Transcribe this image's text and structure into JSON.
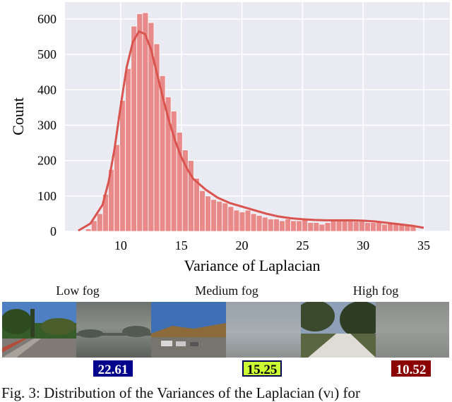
{
  "chart_data": {
    "type": "bar",
    "xlabel": "Variance of Laplacian",
    "ylabel": "Count",
    "xlim": [
      5.4,
      36.3
    ],
    "ylim": [
      0,
      650
    ],
    "xticks": [
      10,
      15,
      20,
      25,
      30,
      35
    ],
    "yticks": [
      0,
      100,
      200,
      300,
      400,
      500,
      600
    ],
    "grid": true,
    "bin_width": 0.47,
    "bin_starts": [
      7.1,
      7.57,
      8.04,
      8.51,
      8.98,
      9.45,
      9.92,
      10.39,
      10.86,
      11.33,
      11.8,
      12.27,
      12.74,
      13.21,
      13.68,
      14.15,
      14.62,
      15.09,
      15.56,
      16.03,
      16.5,
      16.97,
      17.44,
      17.91,
      18.38,
      18.85,
      19.32,
      19.79,
      20.26,
      20.73,
      21.2,
      21.67,
      22.14,
      22.61,
      23.08,
      23.55,
      24.02,
      24.49,
      24.96,
      25.43,
      25.9,
      26.37,
      26.84,
      27.31,
      27.78,
      28.25,
      28.72,
      29.19,
      29.66,
      30.13,
      30.6,
      31.07,
      31.54,
      32.01,
      32.48,
      32.95,
      33.42,
      33.89
    ],
    "counts": [
      7,
      30,
      50,
      105,
      175,
      245,
      370,
      460,
      580,
      615,
      618,
      590,
      530,
      440,
      380,
      340,
      280,
      230,
      200,
      150,
      115,
      100,
      90,
      85,
      80,
      70,
      60,
      55,
      60,
      50,
      45,
      40,
      35,
      35,
      30,
      35,
      30,
      30,
      35,
      25,
      25,
      20,
      25,
      30,
      30,
      30,
      30,
      28,
      28,
      25,
      25,
      30,
      20,
      25,
      20,
      20,
      20,
      15
    ],
    "kde": {
      "x": [
        6.5,
        7.5,
        8.5,
        9.0,
        9.5,
        10.0,
        10.5,
        11.0,
        11.5,
        12.0,
        12.5,
        13.0,
        13.5,
        14.0,
        14.5,
        15.0,
        15.5,
        16.0,
        17.0,
        18.0,
        19.0,
        20.0,
        21.0,
        22.0,
        23.0,
        24.0,
        25.0,
        26.0,
        27.0,
        28.0,
        29.0,
        30.0,
        31.0,
        32.0,
        33.0,
        34.0,
        35.0
      ],
      "y": [
        2,
        22,
        75,
        140,
        235,
        355,
        465,
        535,
        565,
        558,
        515,
        445,
        375,
        310,
        255,
        210,
        175,
        148,
        118,
        95,
        80,
        70,
        60,
        50,
        42,
        37,
        34,
        32,
        31,
        31,
        31,
        30,
        28,
        24,
        20,
        16,
        10
      ]
    },
    "colors": {
      "bar": "#e88a8a",
      "bar_edge": "#ffffff",
      "kde": "#d9534f",
      "plot_bg": "#eaeaf2",
      "grid": "#ffffff"
    }
  },
  "labels": {
    "low": "Low fog",
    "medium": "Medium fog",
    "high": "High fog"
  },
  "badges": {
    "low": {
      "text": "22.61",
      "bg": "#00008b",
      "fg": "#ffffff"
    },
    "medium": {
      "text": "15.25",
      "bg": "#ccff33",
      "fg": "#000000"
    },
    "high": {
      "text": "10.52",
      "bg": "#8b0000",
      "fg": "#ffffff"
    }
  },
  "caption": "Fig. 3: Distribution of the Variances of the Laplacian (vₗ) for"
}
